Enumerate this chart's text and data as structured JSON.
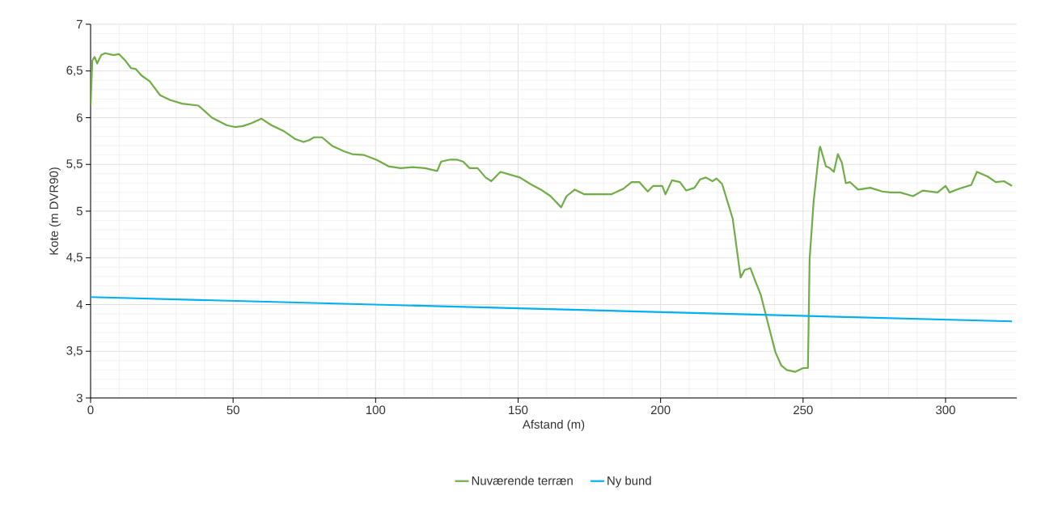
{
  "chart_data": {
    "type": "line",
    "xlabel": "Afstand (m)",
    "ylabel": "Kote (m DVR90)",
    "xlim": [
      0,
      325
    ],
    "xticks": [
      0,
      50,
      100,
      150,
      200,
      250,
      300
    ],
    "ylim": [
      3,
      7
    ],
    "yticks": [
      3,
      {
        "value": 3.5,
        "label": "3,5"
      },
      4,
      {
        "value": 4.5,
        "label": "4,5"
      },
      5,
      {
        "value": 5.5,
        "label": "5,5"
      },
      6,
      {
        "value": 6.5,
        "label": "6,5"
      },
      7
    ],
    "grid": true,
    "legend": "bottom",
    "marker": "none",
    "line_style": "solid",
    "series": [
      {
        "name": "Nuværende terræn",
        "color": "#70ad47",
        "x": [
          0,
          0.6,
          1.4,
          2.3,
          3.7,
          5.1,
          8,
          10,
          12.2,
          14.2,
          15.9,
          17.9,
          20.7,
          24.4,
          27.8,
          32.1,
          37.8,
          42.6,
          47.7,
          50.6,
          53.4,
          56.3,
          59.9,
          63.4,
          67.6,
          71.9,
          74.7,
          76.7,
          78.4,
          81.2,
          84.7,
          88.9,
          91.8,
          96,
          100.3,
          104.5,
          108.8,
          113,
          117.3,
          121.6,
          123,
          125.9,
          128.7,
          130.7,
          133,
          135.8,
          138.6,
          140.6,
          143.8,
          147.2,
          150.6,
          154.3,
          158,
          161.4,
          165.1,
          167,
          169.9,
          173.3,
          178.4,
          182.7,
          187,
          189.8,
          192.6,
          195.5,
          197.4,
          200.6,
          201.7,
          204,
          206.8,
          209,
          211.9,
          213.9,
          215.9,
          218.2,
          219.6,
          221.6,
          225.3,
          227.6,
          228.1,
          229.5,
          231.5,
          233,
          235.2,
          236.6,
          238.6,
          240.3,
          242.3,
          244.3,
          247.2,
          250,
          251.7,
          252.3,
          253.7,
          255.7,
          256,
          258,
          259.4,
          260.8,
          262.2,
          263.6,
          265,
          266.5,
          269.3,
          273.6,
          277.8,
          280.7,
          284,
          288.6,
          292,
          297.2,
          300,
          301.4,
          304.8,
          309,
          311,
          314.8,
          317.6,
          320.5,
          323.3
        ],
        "values": [
          6.13,
          6.61,
          6.65,
          6.58,
          6.67,
          6.69,
          6.67,
          6.68,
          6.61,
          6.53,
          6.52,
          6.45,
          6.39,
          6.24,
          6.19,
          6.15,
          6.13,
          6.0,
          5.92,
          5.9,
          5.91,
          5.94,
          5.99,
          5.92,
          5.86,
          5.77,
          5.74,
          5.76,
          5.79,
          5.79,
          5.7,
          5.64,
          5.61,
          5.6,
          5.55,
          5.48,
          5.46,
          5.47,
          5.46,
          5.43,
          5.53,
          5.55,
          5.55,
          5.53,
          5.46,
          5.46,
          5.36,
          5.32,
          5.42,
          5.39,
          5.36,
          5.29,
          5.23,
          5.16,
          5.04,
          5.16,
          5.23,
          5.18,
          5.18,
          5.18,
          5.24,
          5.31,
          5.31,
          5.21,
          5.27,
          5.27,
          5.18,
          5.33,
          5.31,
          5.22,
          5.25,
          5.34,
          5.36,
          5.32,
          5.35,
          5.29,
          4.92,
          4.4,
          4.29,
          4.37,
          4.39,
          4.27,
          4.1,
          3.93,
          3.69,
          3.49,
          3.35,
          3.3,
          3.28,
          3.32,
          3.32,
          4.49,
          5.1,
          5.66,
          5.69,
          5.48,
          5.46,
          5.42,
          5.61,
          5.52,
          5.3,
          5.31,
          5.23,
          5.25,
          5.21,
          5.2,
          5.2,
          5.16,
          5.22,
          5.2,
          5.27,
          5.2,
          5.24,
          5.28,
          5.42,
          5.37,
          5.31,
          5.32,
          5.27
        ]
      },
      {
        "name": "Ny bund",
        "color": "#00b0f0",
        "x": [
          0,
          323.3
        ],
        "values": [
          4.08,
          3.82
        ]
      }
    ]
  }
}
